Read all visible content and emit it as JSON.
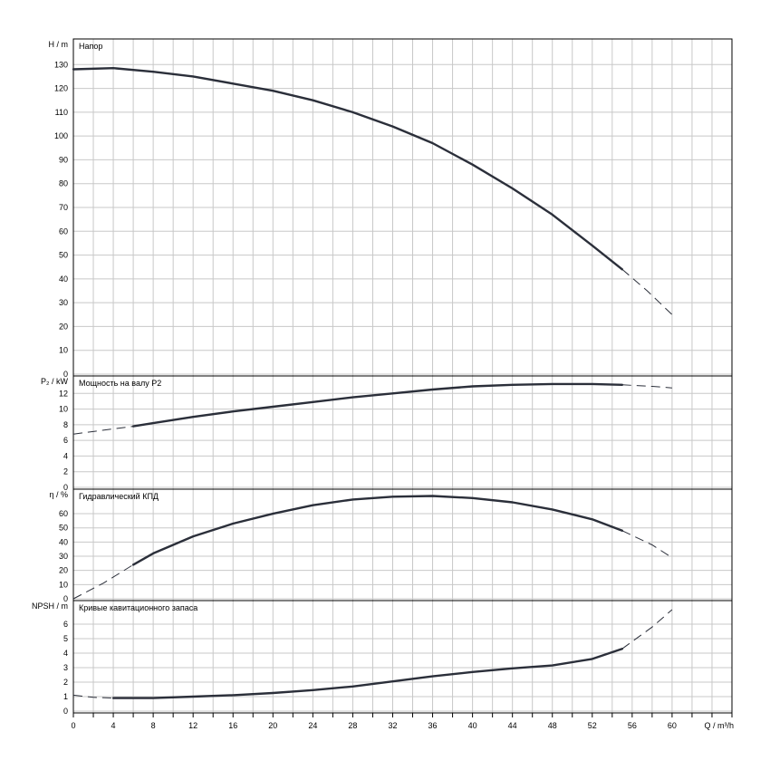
{
  "chart_data": {
    "type": "line",
    "x_axis": {
      "label": "Q / m³/h",
      "min": 0,
      "max": 66,
      "ticks": [
        0,
        4,
        8,
        12,
        16,
        20,
        24,
        28,
        32,
        36,
        40,
        44,
        48,
        52,
        56,
        60
      ]
    },
    "grid": true,
    "panels": [
      {
        "title": "Напор",
        "ylabel": "H / m",
        "ylim": [
          0,
          140
        ],
        "yticks": [
          0,
          10,
          20,
          30,
          40,
          50,
          60,
          70,
          80,
          90,
          100,
          110,
          120,
          130
        ],
        "solid": {
          "x": [
            0,
            4,
            8,
            12,
            16,
            20,
            24,
            28,
            32,
            36,
            40,
            44,
            48,
            52,
            55
          ],
          "y": [
            128,
            128.5,
            127,
            125,
            122,
            119,
            115,
            110,
            104,
            97,
            88,
            78,
            67,
            54,
            44
          ]
        },
        "dashed": {
          "x": [
            55,
            57.5,
            60
          ],
          "y": [
            44,
            35,
            25
          ]
        }
      },
      {
        "title": "Мощность на валу P2",
        "ylabel": "P₂ / kW",
        "ylim": [
          0,
          14
        ],
        "yticks": [
          0,
          2,
          4,
          6,
          8,
          10,
          12
        ],
        "solid": {
          "x": [
            6,
            8,
            12,
            16,
            20,
            24,
            28,
            32,
            36,
            40,
            44,
            48,
            52,
            55
          ],
          "y": [
            7.8,
            8.2,
            9,
            9.7,
            10.3,
            10.9,
            11.5,
            12,
            12.5,
            12.9,
            13.1,
            13.2,
            13.2,
            13.1
          ]
        },
        "dashed": {
          "x": [
            0,
            3,
            6
          ],
          "y": [
            6.8,
            7.3,
            7.8
          ]
        },
        "dashed2": {
          "x": [
            55,
            58,
            60
          ],
          "y": [
            13.1,
            12.9,
            12.7
          ]
        }
      },
      {
        "title": "Гидравлический КПД",
        "ylabel": "η / %",
        "ylim": [
          0,
          76
        ],
        "yticks": [
          0,
          10,
          20,
          30,
          40,
          50,
          60
        ],
        "solid": {
          "x": [
            6,
            8,
            12,
            16,
            20,
            24,
            28,
            32,
            36,
            40,
            44,
            48,
            52,
            55
          ],
          "y": [
            24,
            32,
            44,
            53,
            60,
            66,
            70,
            72,
            72.5,
            71,
            68,
            63,
            56,
            48
          ]
        },
        "dashed": {
          "x": [
            0,
            3,
            6
          ],
          "y": [
            0,
            11,
            24
          ]
        },
        "dashed2": {
          "x": [
            55,
            58,
            60
          ],
          "y": [
            48,
            38,
            29
          ]
        }
      },
      {
        "title": "Кривые кавитационного запаса",
        "ylabel": "NPSH / m",
        "ylim": [
          0,
          7.5
        ],
        "yticks": [
          0,
          1,
          2,
          3,
          4,
          5,
          6
        ],
        "solid": {
          "x": [
            4,
            8,
            12,
            16,
            20,
            24,
            28,
            32,
            36,
            40,
            44,
            48,
            52,
            55
          ],
          "y": [
            0.9,
            0.9,
            1.0,
            1.1,
            1.25,
            1.45,
            1.7,
            2.05,
            2.4,
            2.7,
            2.95,
            3.15,
            3.6,
            4.3
          ]
        },
        "dashed": {
          "x": [
            0,
            2,
            4
          ],
          "y": [
            1.1,
            0.95,
            0.9
          ]
        },
        "dashed2": {
          "x": [
            55,
            58,
            60
          ],
          "y": [
            4.3,
            5.8,
            7.0
          ]
        }
      }
    ]
  }
}
